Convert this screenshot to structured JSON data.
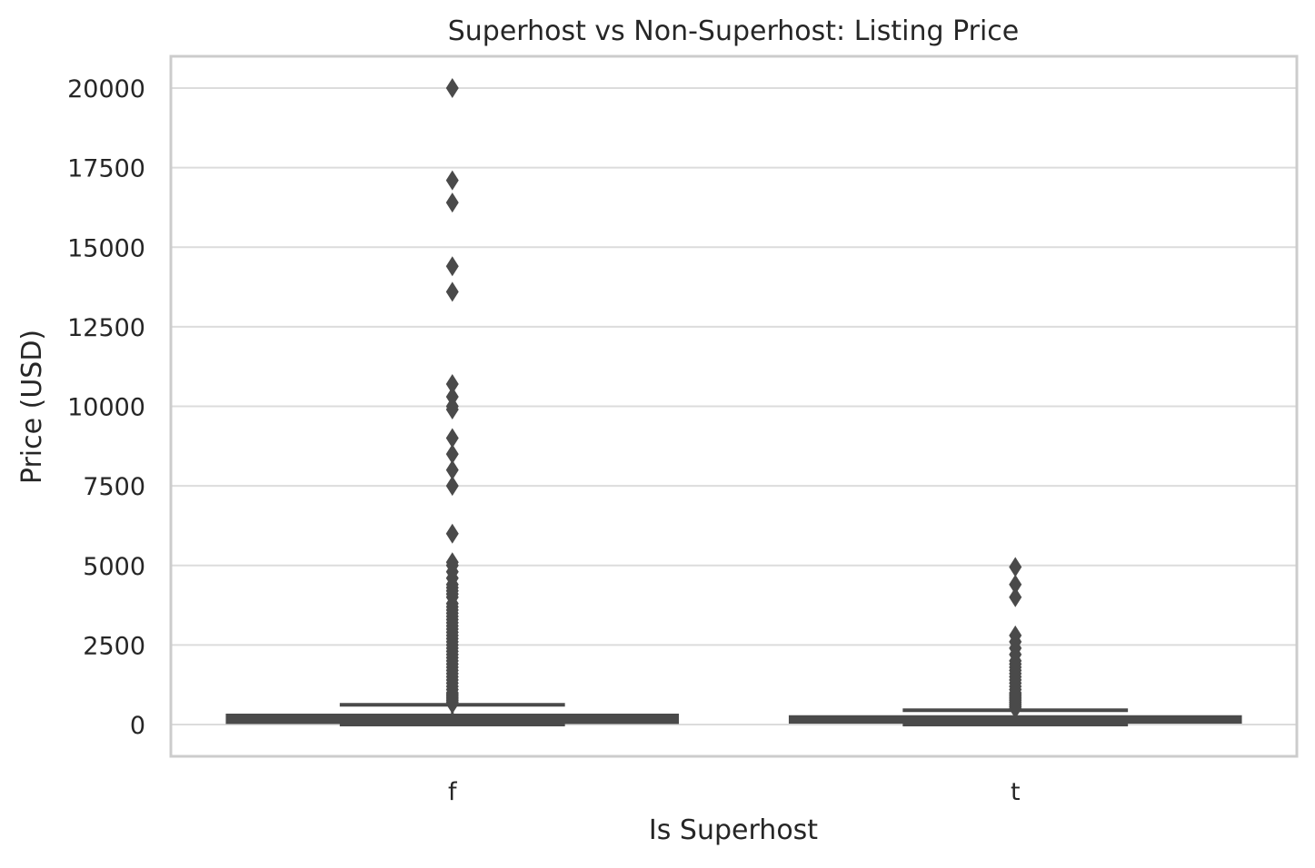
{
  "chart_data": {
    "type": "box",
    "title": "Superhost vs Non-Superhost: Listing Price",
    "xlabel": "Is Superhost",
    "ylabel": "Price (USD)",
    "categories": [
      "f",
      "t"
    ],
    "ylim": [
      -1000,
      21000
    ],
    "yticks": [
      0,
      2500,
      5000,
      7500,
      10000,
      12500,
      15000,
      17500,
      20000
    ],
    "grid": true,
    "legend": "none",
    "colors": {
      "box": "#4a4a4a",
      "grid": "#dcdcdc",
      "spine": "#cccccc",
      "text": "#262626"
    },
    "boxes": [
      {
        "category": "f",
        "whisker_low": 0,
        "q1": 60,
        "median": 150,
        "q3": 300,
        "whisker_high": 620,
        "outliers": [
          20000,
          17100,
          16400,
          14400,
          13600,
          10700,
          10300,
          10000,
          9900,
          9000,
          8500,
          8000,
          7500,
          6000,
          5100,
          5000,
          4800,
          4600,
          4400,
          4300,
          4200,
          4100,
          4000,
          3800,
          3700,
          3600,
          3500,
          3400,
          3300,
          3200,
          3100,
          3000,
          2900,
          2800,
          2700,
          2600,
          2500,
          2400,
          2300,
          2200,
          2100,
          2000,
          1900,
          1800,
          1700,
          1600,
          1500,
          1400,
          1300,
          1200,
          1100,
          1000,
          950,
          900,
          850,
          800,
          750,
          700,
          650
        ]
      },
      {
        "category": "t",
        "whisker_low": 0,
        "q1": 70,
        "median": 140,
        "q3": 250,
        "whisker_high": 450,
        "outliers": [
          4950,
          4400,
          4000,
          2800,
          2600,
          2400,
          2200,
          2000,
          1900,
          1800,
          1700,
          1600,
          1500,
          1400,
          1300,
          1200,
          1100,
          1000,
          950,
          900,
          850,
          800,
          750,
          700,
          650,
          600,
          550,
          500
        ]
      }
    ]
  }
}
